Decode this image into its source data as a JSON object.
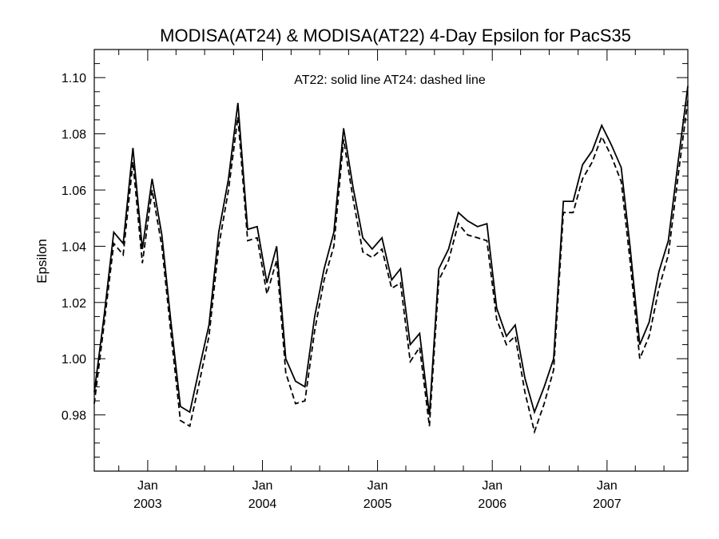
{
  "chart_data": {
    "type": "line",
    "title": "MODISA(AT24) & MODISA(AT22) 4-Day Epsilon for PacS35",
    "xlabel": "",
    "ylabel": "Epsilon",
    "annotation": "AT22: solid line   AT24: dashed line",
    "xlim": [
      "2002-07-15",
      "2007-09-15"
    ],
    "ylim": [
      0.96,
      1.11
    ],
    "y_ticks": [
      0.98,
      1.0,
      1.02,
      1.04,
      1.06,
      1.08,
      1.1
    ],
    "y_tick_labels": [
      "0.98",
      "1.00",
      "1.02",
      "1.04",
      "1.06",
      "1.08",
      "1.10"
    ],
    "x_ticks": [
      {
        "date": "2003-01-01",
        "month": "Jan",
        "year": "2003"
      },
      {
        "date": "2004-01-01",
        "month": "Jan",
        "year": "2004"
      },
      {
        "date": "2005-01-01",
        "month": "Jan",
        "year": "2005"
      },
      {
        "date": "2006-01-01",
        "month": "Jan",
        "year": "2006"
      },
      {
        "date": "2007-01-01",
        "month": "Jan",
        "year": "2007"
      }
    ],
    "grid": false,
    "series": [
      {
        "name": "AT22",
        "style": "solid",
        "color": "#000000",
        "points": [
          [
            "2002-07-15",
            0.988
          ],
          [
            "2002-08-15",
            1.015
          ],
          [
            "2002-09-15",
            1.045
          ],
          [
            "2002-10-15",
            1.041
          ],
          [
            "2002-11-15",
            1.075
          ],
          [
            "2002-12-15",
            1.039
          ],
          [
            "2003-01-15",
            1.064
          ],
          [
            "2003-02-15",
            1.044
          ],
          [
            "2003-03-15",
            1.014
          ],
          [
            "2003-04-15",
            0.983
          ],
          [
            "2003-05-15",
            0.981
          ],
          [
            "2003-06-15",
            0.997
          ],
          [
            "2003-07-15",
            1.012
          ],
          [
            "2003-08-15",
            1.045
          ],
          [
            "2003-09-15",
            1.064
          ],
          [
            "2003-10-15",
            1.091
          ],
          [
            "2003-11-15",
            1.046
          ],
          [
            "2003-12-15",
            1.047
          ],
          [
            "2004-01-15",
            1.027
          ],
          [
            "2004-02-15",
            1.04
          ],
          [
            "2004-03-15",
            1.0
          ],
          [
            "2004-04-15",
            0.992
          ],
          [
            "2004-05-15",
            0.99
          ],
          [
            "2004-06-15",
            1.015
          ],
          [
            "2004-07-15",
            1.032
          ],
          [
            "2004-08-15",
            1.045
          ],
          [
            "2004-09-15",
            1.082
          ],
          [
            "2004-10-15",
            1.061
          ],
          [
            "2004-11-15",
            1.043
          ],
          [
            "2004-12-15",
            1.039
          ],
          [
            "2005-01-15",
            1.043
          ],
          [
            "2005-02-15",
            1.028
          ],
          [
            "2005-03-15",
            1.032
          ],
          [
            "2005-04-15",
            1.005
          ],
          [
            "2005-05-15",
            1.009
          ],
          [
            "2005-06-15",
            0.98
          ],
          [
            "2005-07-15",
            1.032
          ],
          [
            "2005-08-15",
            1.039
          ],
          [
            "2005-09-15",
            1.052
          ],
          [
            "2005-10-15",
            1.049
          ],
          [
            "2005-11-15",
            1.047
          ],
          [
            "2005-12-15",
            1.048
          ],
          [
            "2006-01-15",
            1.018
          ],
          [
            "2006-02-15",
            1.008
          ],
          [
            "2006-03-15",
            1.012
          ],
          [
            "2006-04-15",
            0.993
          ],
          [
            "2006-05-15",
            0.981
          ],
          [
            "2006-06-15",
            0.99
          ],
          [
            "2006-07-15",
            1.0
          ],
          [
            "2006-08-15",
            1.056
          ],
          [
            "2006-09-15",
            1.056
          ],
          [
            "2006-10-15",
            1.069
          ],
          [
            "2006-11-15",
            1.074
          ],
          [
            "2006-12-15",
            1.083
          ],
          [
            "2007-01-15",
            1.076
          ],
          [
            "2007-02-15",
            1.068
          ],
          [
            "2007-03-15",
            1.04
          ],
          [
            "2007-04-15",
            1.005
          ],
          [
            "2007-05-15",
            1.013
          ],
          [
            "2007-06-15",
            1.031
          ],
          [
            "2007-07-15",
            1.042
          ],
          [
            "2007-08-15",
            1.07
          ],
          [
            "2007-09-15",
            1.097
          ]
        ]
      },
      {
        "name": "AT24",
        "style": "dashed",
        "color": "#000000",
        "points": [
          [
            "2002-07-15",
            0.984
          ],
          [
            "2002-08-15",
            1.012
          ],
          [
            "2002-09-15",
            1.041
          ],
          [
            "2002-10-15",
            1.037
          ],
          [
            "2002-11-15",
            1.07
          ],
          [
            "2002-12-15",
            1.034
          ],
          [
            "2003-01-15",
            1.06
          ],
          [
            "2003-02-15",
            1.04
          ],
          [
            "2003-03-15",
            1.01
          ],
          [
            "2003-04-15",
            0.978
          ],
          [
            "2003-05-15",
            0.976
          ],
          [
            "2003-06-15",
            0.992
          ],
          [
            "2003-07-15",
            1.008
          ],
          [
            "2003-08-15",
            1.04
          ],
          [
            "2003-09-15",
            1.06
          ],
          [
            "2003-10-15",
            1.086
          ],
          [
            "2003-11-15",
            1.042
          ],
          [
            "2003-12-15",
            1.043
          ],
          [
            "2004-01-15",
            1.023
          ],
          [
            "2004-02-15",
            1.035
          ],
          [
            "2004-03-15",
            0.995
          ],
          [
            "2004-04-15",
            0.984
          ],
          [
            "2004-05-15",
            0.985
          ],
          [
            "2004-06-15",
            1.01
          ],
          [
            "2004-07-15",
            1.028
          ],
          [
            "2004-08-15",
            1.04
          ],
          [
            "2004-09-15",
            1.078
          ],
          [
            "2004-10-15",
            1.057
          ],
          [
            "2004-11-15",
            1.038
          ],
          [
            "2004-12-15",
            1.036
          ],
          [
            "2005-01-15",
            1.039
          ],
          [
            "2005-02-15",
            1.025
          ],
          [
            "2005-03-15",
            1.027
          ],
          [
            "2005-04-15",
            0.999
          ],
          [
            "2005-05-15",
            1.004
          ],
          [
            "2005-06-15",
            0.976
          ],
          [
            "2005-07-15",
            1.028
          ],
          [
            "2005-08-15",
            1.035
          ],
          [
            "2005-09-15",
            1.048
          ],
          [
            "2005-10-15",
            1.044
          ],
          [
            "2005-11-15",
            1.043
          ],
          [
            "2005-12-15",
            1.042
          ],
          [
            "2006-01-15",
            1.014
          ],
          [
            "2006-02-15",
            1.005
          ],
          [
            "2006-03-15",
            1.008
          ],
          [
            "2006-04-15",
            0.988
          ],
          [
            "2006-05-15",
            0.974
          ],
          [
            "2006-06-15",
            0.984
          ],
          [
            "2006-07-15",
            0.996
          ],
          [
            "2006-08-15",
            1.052
          ],
          [
            "2006-09-15",
            1.052
          ],
          [
            "2006-10-15",
            1.064
          ],
          [
            "2006-11-15",
            1.07
          ],
          [
            "2006-12-15",
            1.079
          ],
          [
            "2007-01-15",
            1.072
          ],
          [
            "2007-02-15",
            1.063
          ],
          [
            "2007-03-15",
            1.035
          ],
          [
            "2007-04-15",
            1.0
          ],
          [
            "2007-05-15",
            1.008
          ],
          [
            "2007-06-15",
            1.025
          ],
          [
            "2007-07-15",
            1.037
          ],
          [
            "2007-08-15",
            1.065
          ],
          [
            "2007-09-15",
            1.092
          ]
        ]
      }
    ]
  }
}
